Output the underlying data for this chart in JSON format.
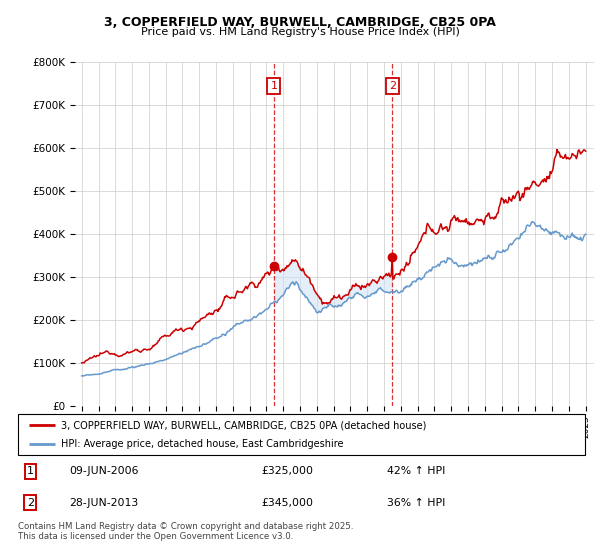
{
  "title_line1": "3, COPPERFIELD WAY, BURWELL, CAMBRIDGE, CB25 0PA",
  "title_line2": "Price paid vs. HM Land Registry's House Price Index (HPI)",
  "ylim": [
    0,
    800000
  ],
  "yticks": [
    0,
    100000,
    200000,
    300000,
    400000,
    500000,
    600000,
    700000,
    800000
  ],
  "ytick_labels": [
    "£0",
    "£100K",
    "£200K",
    "£300K",
    "£400K",
    "£500K",
    "£600K",
    "£700K",
    "£800K"
  ],
  "red_color": "#cc0000",
  "blue_color": "#6699cc",
  "shade_color": "#cce0f5",
  "vline_color": "#cc0000",
  "grid_color": "#cccccc",
  "bg_color": "#ffffff",
  "sale1_date": 2006.44,
  "sale1_price": 325000,
  "sale2_date": 2013.49,
  "sale2_price": 345000,
  "xlim_left": 1994.6,
  "xlim_right": 2025.5,
  "legend_line1": "3, COPPERFIELD WAY, BURWELL, CAMBRIDGE, CB25 0PA (detached house)",
  "legend_line2": "HPI: Average price, detached house, East Cambridgeshire",
  "table_row1": [
    "1",
    "09-JUN-2006",
    "£325,000",
    "42% ↑ HPI"
  ],
  "table_row2": [
    "2",
    "28-JUN-2013",
    "£345,000",
    "36% ↑ HPI"
  ],
  "footnote": "Contains HM Land Registry data © Crown copyright and database right 2025.\nThis data is licensed under the Open Government Licence v3.0."
}
